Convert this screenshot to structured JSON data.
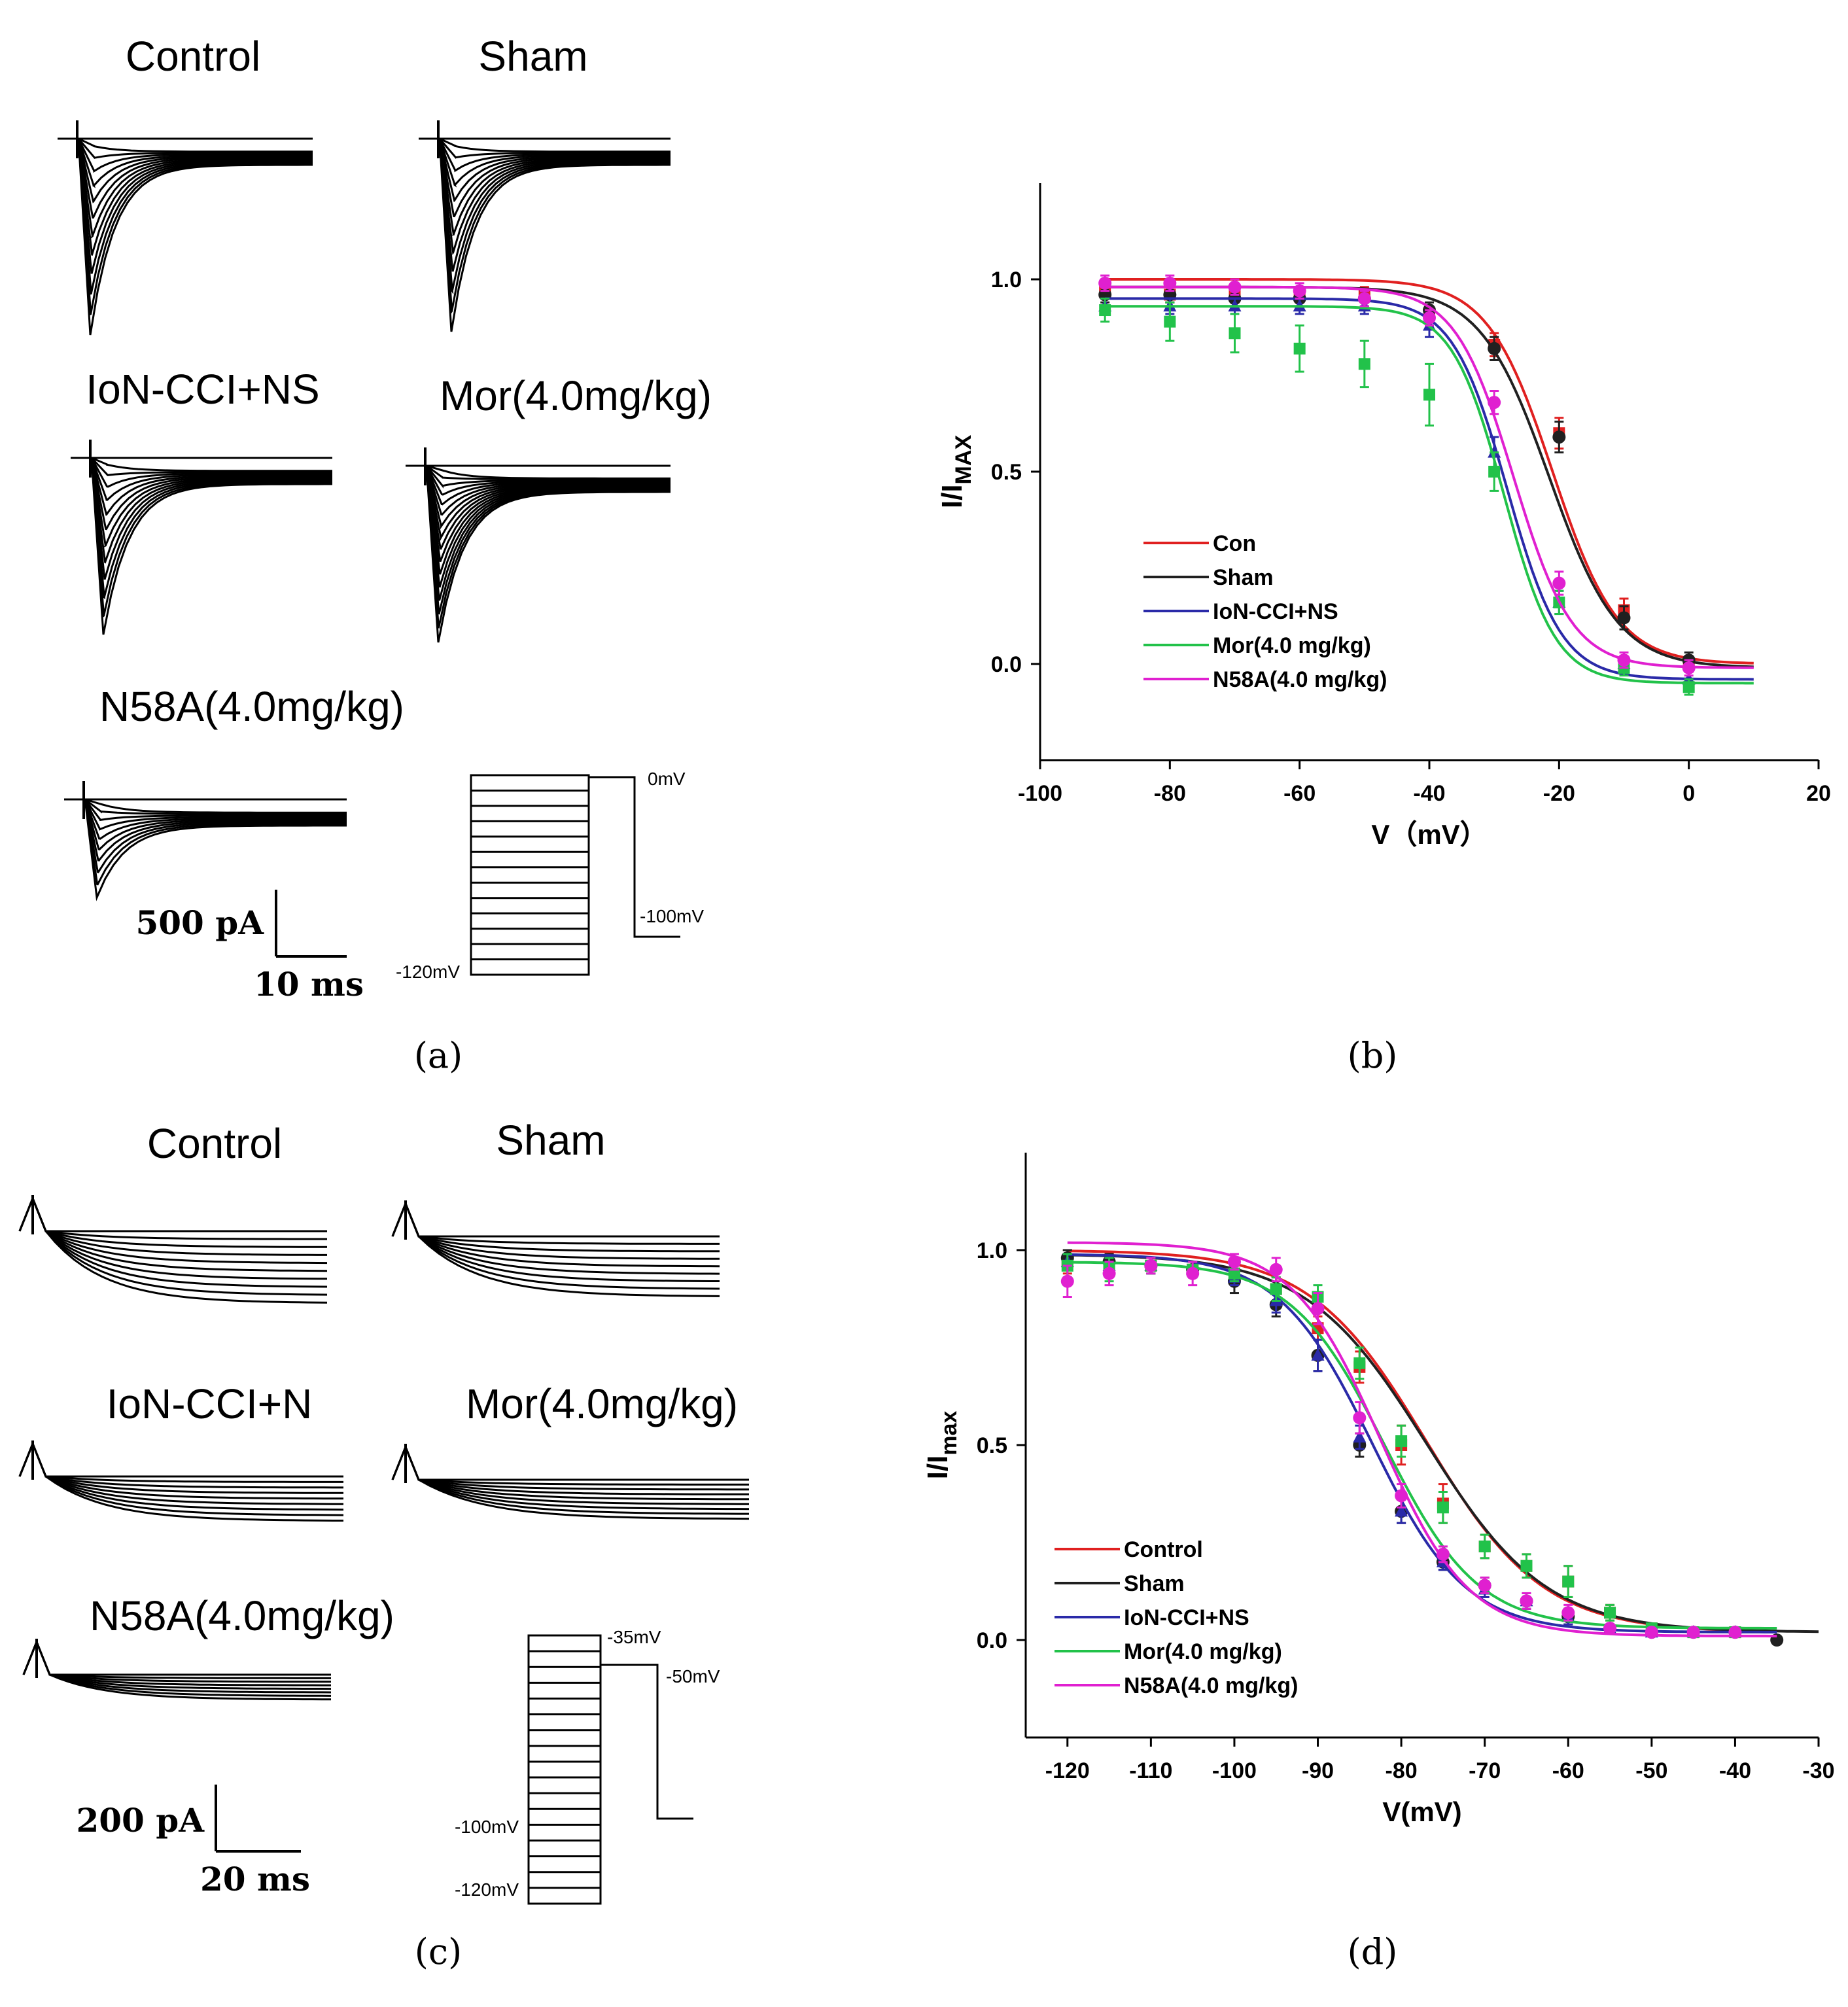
{
  "panels": {
    "a": {
      "label": "(a)",
      "trace_titles": [
        "Control",
        "Sham",
        "IoN-CCI+NS",
        "Mor(4.0mg/kg)",
        "N58A(4.0mg/kg)"
      ],
      "scale_current": "500 pA",
      "scale_time": "10 ms",
      "protocol_labels": [
        "0mV",
        "-100mV",
        "-120mV"
      ]
    },
    "b": {
      "label": "(b)"
    },
    "c": {
      "label": "(c)",
      "trace_titles": [
        "Control",
        "Sham",
        "IoN-CCI+N",
        "Mor(4.0mg/kg)",
        "N58A(4.0mg/kg)"
      ],
      "scale_current": "200 pA",
      "scale_time": "20 ms",
      "protocol_labels": [
        "-35mV",
        "-50mV",
        "-100mV",
        "-120mV"
      ]
    },
    "d": {
      "label": "(d)"
    }
  },
  "colors": {
    "control": "#e02020",
    "sham": "#202020",
    "ion_cci_ns": "#2a2aa8",
    "mor": "#22c24a",
    "n58a": "#e020d0",
    "axis": "#000000"
  },
  "chart_data": [
    {
      "panel": "b",
      "type": "line",
      "ylabel_main": "I/I",
      "ylabel_sub": "MAX",
      "xlabel": "V（mV）",
      "xlim": [
        -100,
        20
      ],
      "ylim": [
        -0.25,
        1.25
      ],
      "xticks": [
        -100,
        -80,
        -60,
        -40,
        -20,
        0,
        20
      ],
      "yticks": [
        0.0,
        0.5,
        1.0
      ],
      "ytick_labels": [
        "0.0",
        "0.5",
        "1.0"
      ],
      "legend_position": "lower-left",
      "series": [
        {
          "name": "Con",
          "color_key": "control",
          "x": [
            -90,
            -80,
            -70,
            -60,
            -50,
            -40,
            -30,
            -20,
            -10,
            0
          ],
          "y": [
            0.97,
            0.96,
            0.96,
            0.96,
            0.96,
            0.91,
            0.83,
            0.6,
            0.14,
            0.0
          ],
          "err": [
            0.02,
            0.02,
            0.02,
            0.02,
            0.02,
            0.02,
            0.03,
            0.04,
            0.03,
            0.02
          ],
          "fit": {
            "top": 1.0,
            "bottom": 0.0,
            "v_half": -21,
            "k": 5.0
          }
        },
        {
          "name": "Sham",
          "color_key": "sham",
          "x": [
            -90,
            -80,
            -70,
            -60,
            -50,
            -40,
            -30,
            -20,
            -10,
            0
          ],
          "y": [
            0.96,
            0.96,
            0.95,
            0.95,
            0.95,
            0.92,
            0.82,
            0.59,
            0.12,
            0.01
          ],
          "err": [
            0.02,
            0.02,
            0.02,
            0.02,
            0.02,
            0.02,
            0.03,
            0.04,
            0.03,
            0.02
          ],
          "fit": {
            "top": 0.98,
            "bottom": -0.01,
            "v_half": -21.5,
            "k": 5.3
          }
        },
        {
          "name": "IoN-CCI+NS",
          "color_key": "ion_cci_ns",
          "x": [
            -90,
            -80,
            -70,
            -60,
            -50,
            -40,
            -30,
            -20,
            -10,
            0
          ],
          "y": [
            0.93,
            0.93,
            0.93,
            0.93,
            0.93,
            0.88,
            0.55,
            0.16,
            0.0,
            -0.04
          ],
          "err": [
            0.02,
            0.02,
            0.02,
            0.02,
            0.02,
            0.03,
            0.04,
            0.03,
            0.02,
            0.02
          ],
          "fit": {
            "top": 0.95,
            "bottom": -0.04,
            "v_half": -28,
            "k": 4.2
          }
        },
        {
          "name": "Mor(4.0 mg/kg)",
          "color_key": "mor",
          "x": [
            -90,
            -80,
            -70,
            -60,
            -50,
            -40,
            -30,
            -20,
            -10,
            0
          ],
          "y": [
            0.92,
            0.89,
            0.86,
            0.82,
            0.78,
            0.7,
            0.5,
            0.16,
            -0.01,
            -0.06
          ],
          "err": [
            0.03,
            0.05,
            0.05,
            0.06,
            0.06,
            0.08,
            0.05,
            0.03,
            0.02,
            0.02
          ],
          "fit": {
            "top": 0.93,
            "bottom": -0.05,
            "v_half": -28.5,
            "k": 4.0
          }
        },
        {
          "name": "N58A(4.0 mg/kg)",
          "color_key": "n58a",
          "x": [
            -90,
            -80,
            -70,
            -60,
            -50,
            -40,
            -30,
            -20,
            -10,
            0
          ],
          "y": [
            0.99,
            0.99,
            0.98,
            0.97,
            0.95,
            0.9,
            0.68,
            0.21,
            0.01,
            -0.01
          ],
          "err": [
            0.02,
            0.02,
            0.02,
            0.02,
            0.02,
            0.02,
            0.03,
            0.03,
            0.02,
            0.02
          ],
          "fit": {
            "top": 0.98,
            "bottom": -0.01,
            "v_half": -27,
            "k": 4.5
          }
        }
      ]
    },
    {
      "panel": "d",
      "type": "line",
      "ylabel_main": "I/I",
      "ylabel_sub": "max",
      "xlabel": "V(mV)",
      "xlim": [
        -125,
        -30
      ],
      "ylim": [
        -0.25,
        1.25
      ],
      "xticks": [
        -120,
        -110,
        -100,
        -90,
        -80,
        -70,
        -60,
        -50,
        -40,
        -30
      ],
      "yticks": [
        0.0,
        0.5,
        1.0
      ],
      "ytick_labels": [
        "0.0",
        "0.5",
        "1.0"
      ],
      "legend_position": "lower-left",
      "series": [
        {
          "name": "Control",
          "color_key": "control",
          "x": [
            -120,
            -115,
            -110,
            -105,
            -100,
            -95,
            -90,
            -85,
            -80,
            -75,
            -70,
            -65,
            -60,
            -55,
            -50,
            -45,
            -40
          ],
          "y": [
            0.97,
            0.96,
            0.96,
            0.95,
            0.94,
            0.9,
            0.8,
            0.7,
            0.5,
            0.35,
            0.24,
            0.19,
            0.15,
            0.07,
            0.03,
            0.02,
            0.02
          ],
          "err": [
            0.03,
            0.03,
            0.02,
            0.02,
            0.02,
            0.03,
            0.03,
            0.04,
            0.05,
            0.05,
            0.03,
            0.03,
            0.04,
            0.02,
            0.01,
            0.01,
            0.01
          ],
          "fit": {
            "top": 1.0,
            "bottom": 0.02,
            "v_half": -77,
            "k": 7.0
          }
        },
        {
          "name": "Sham",
          "color_key": "sham",
          "x": [
            -120,
            -115,
            -110,
            -105,
            -100,
            -95,
            -90,
            -85,
            -80,
            -75,
            -70,
            -65,
            -60,
            -55,
            -50,
            -45,
            -40,
            -35
          ],
          "y": [
            0.98,
            0.97,
            0.96,
            0.95,
            0.92,
            0.86,
            0.73,
            0.5,
            0.33,
            0.2,
            0.14,
            0.1,
            0.06,
            0.03,
            0.02,
            0.02,
            0.02,
            0.0
          ],
          "err": [
            0.02,
            0.02,
            0.02,
            0.02,
            0.03,
            0.03,
            0.04,
            0.03,
            0.03,
            0.02,
            0.02,
            0.02,
            0.02,
            0.01,
            0.01,
            0.01,
            0.01,
            0.01
          ],
          "fit": {
            "top": 0.99,
            "bottom": 0.02,
            "v_half": -77,
            "k": 7.2
          }
        },
        {
          "name": "IoN-CCI+NS",
          "color_key": "ion_cci_ns",
          "x": [
            -120,
            -115,
            -110,
            -105,
            -100,
            -95,
            -90,
            -85,
            -80,
            -75,
            -70,
            -65,
            -60,
            -55,
            -50,
            -45,
            -40
          ],
          "y": [
            0.97,
            0.96,
            0.96,
            0.95,
            0.93,
            0.87,
            0.73,
            0.52,
            0.33,
            0.2,
            0.13,
            0.1,
            0.06,
            0.03,
            0.02,
            0.02,
            0.02
          ],
          "err": [
            0.02,
            0.02,
            0.02,
            0.02,
            0.02,
            0.03,
            0.04,
            0.03,
            0.03,
            0.02,
            0.02,
            0.02,
            0.02,
            0.01,
            0.01,
            0.01,
            0.01
          ],
          "fit": {
            "top": 0.99,
            "bottom": 0.02,
            "v_half": -83.5,
            "k": 5.6
          }
        },
        {
          "name": "Mor(4.0 mg/kg)",
          "color_key": "mor",
          "x": [
            -120,
            -115,
            -110,
            -105,
            -100,
            -95,
            -90,
            -85,
            -80,
            -75,
            -70,
            -65,
            -60,
            -55,
            -50,
            -45,
            -40
          ],
          "y": [
            0.96,
            0.95,
            0.96,
            0.95,
            0.94,
            0.9,
            0.88,
            0.71,
            0.51,
            0.34,
            0.24,
            0.19,
            0.15,
            0.07,
            0.03,
            0.02,
            0.02
          ],
          "err": [
            0.03,
            0.03,
            0.02,
            0.02,
            0.02,
            0.03,
            0.03,
            0.04,
            0.04,
            0.04,
            0.03,
            0.03,
            0.04,
            0.02,
            0.01,
            0.01,
            0.01
          ],
          "fit": {
            "top": 0.97,
            "bottom": 0.03,
            "v_half": -82,
            "k": 5.6
          }
        },
        {
          "name": "N58A(4.0 mg/kg)",
          "color_key": "n58a",
          "x": [
            -120,
            -115,
            -110,
            -105,
            -100,
            -95,
            -90,
            -85,
            -80,
            -75,
            -70,
            -65,
            -60,
            -55,
            -50,
            -45,
            -40
          ],
          "y": [
            0.92,
            0.94,
            0.96,
            0.94,
            0.97,
            0.95,
            0.85,
            0.57,
            0.37,
            0.22,
            0.14,
            0.1,
            0.07,
            0.03,
            0.02,
            0.02,
            0.02
          ],
          "err": [
            0.04,
            0.03,
            0.02,
            0.03,
            0.02,
            0.03,
            0.04,
            0.04,
            0.03,
            0.02,
            0.02,
            0.02,
            0.02,
            0.01,
            0.01,
            0.01,
            0.01
          ],
          "fit": {
            "top": 1.02,
            "bottom": 0.01,
            "v_half": -82.5,
            "k": 5.3
          }
        }
      ]
    }
  ]
}
